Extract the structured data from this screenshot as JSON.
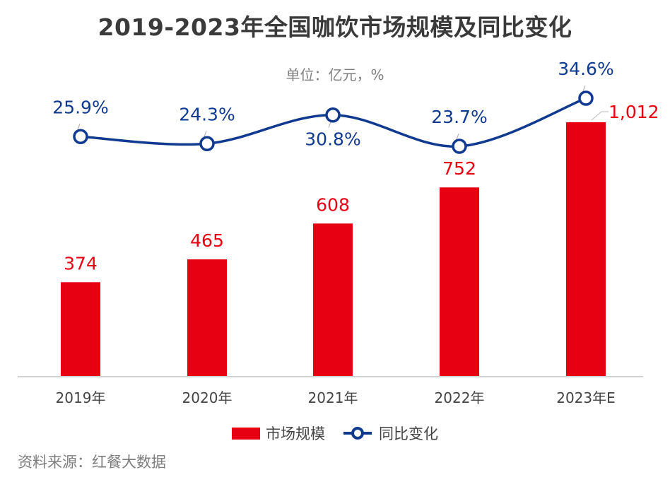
{
  "chart_data": {
    "type": "bar+line",
    "title": "2019-2023年全国咖饮市场规模及同比变化",
    "unit_note": "单位：亿元，%",
    "categories": [
      "2019年",
      "2020年",
      "2021年",
      "2022年",
      "2023年E"
    ],
    "series": [
      {
        "name": "市场规模",
        "type": "bar",
        "values": [
          374,
          465,
          608,
          752,
          1012
        ],
        "labels": [
          "374",
          "465",
          "608",
          "752",
          "1,012"
        ],
        "color": "#e60012"
      },
      {
        "name": "同比变化",
        "type": "line",
        "values": [
          25.9,
          24.3,
          30.8,
          23.7,
          34.6
        ],
        "labels": [
          "25.9%",
          "24.3%",
          "30.8%",
          "23.7%",
          "34.6%"
        ],
        "color": "#0f3a8f"
      }
    ],
    "grid": false,
    "legend": "bottom",
    "source": "资料来源：红餐大数据"
  },
  "colors": {
    "bar": "#e60012",
    "line": "#0f3a8f",
    "axis": "#d0d0d0",
    "tick_text": "#444444"
  }
}
